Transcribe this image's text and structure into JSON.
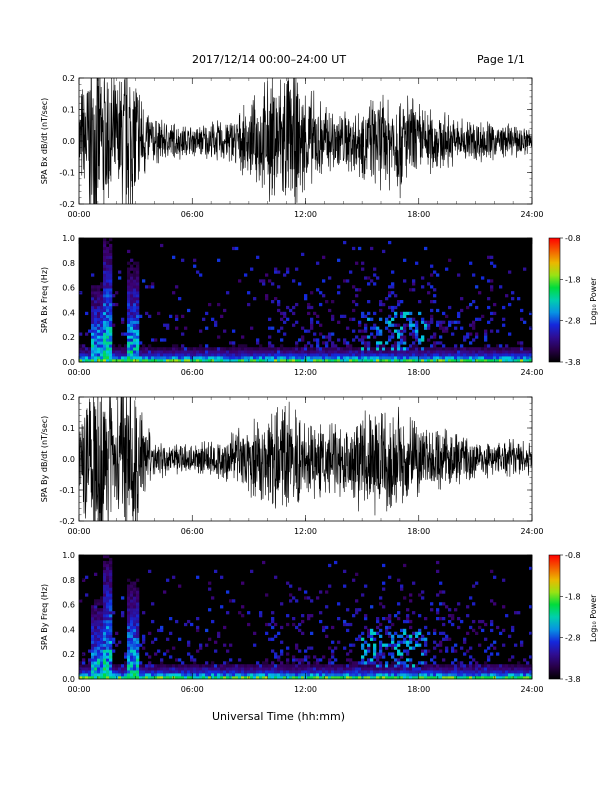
{
  "header": {
    "title": "2017/12/14  00:00–24:00 UT",
    "page": "Page 1/1"
  },
  "xlabel": "Universal Time (hh:mm)",
  "colorbar": {
    "label": "Log₁₀ Power",
    "ticks": [
      "-0.8",
      "-1.8",
      "-2.8",
      "-3.8"
    ],
    "range": [
      -3.8,
      -0.8
    ]
  },
  "chart_data": [
    {
      "type": "line",
      "ylabel": "SPA Bx dB/dt (nT/sec)",
      "xlim": [
        0,
        24
      ],
      "ylim": [
        -0.2,
        0.2
      ],
      "xticks": [
        "00:00",
        "06:00",
        "12:00",
        "18:00",
        "24:00"
      ],
      "yticks": [
        "0.2",
        "0.1",
        "0.0",
        "-0.1",
        "-0.2"
      ],
      "envelope": {
        "t_hours": [
          0,
          0.5,
          1,
          1.5,
          2,
          2.5,
          3,
          3.5,
          4,
          5,
          6,
          7,
          8,
          9,
          10,
          11,
          12,
          13,
          14,
          15,
          16,
          17,
          18,
          19,
          20,
          21,
          22,
          23,
          24
        ],
        "amplitude": [
          0.12,
          0.2,
          0.25,
          0.2,
          0.15,
          0.25,
          0.2,
          0.1,
          0.06,
          0.05,
          0.04,
          0.05,
          0.06,
          0.09,
          0.16,
          0.2,
          0.14,
          0.1,
          0.08,
          0.1,
          0.12,
          0.14,
          0.1,
          0.08,
          0.06,
          0.06,
          0.05,
          0.04,
          0.04
        ]
      }
    },
    {
      "type": "heatmap",
      "ylabel": "SPA Bx Freq (Hz)",
      "xlim": [
        0,
        24
      ],
      "ylim": [
        0,
        1
      ],
      "xticks": [
        "00:00",
        "06:00",
        "12:00",
        "18:00",
        "24:00"
      ],
      "yticks": [
        "1.0",
        "0.8",
        "0.6",
        "0.4",
        "0.2",
        "0.0"
      ],
      "zlim": [
        -3.8,
        -0.8
      ]
    },
    {
      "type": "line",
      "ylabel": "SPA By dB/dt (nT/sec)",
      "xlim": [
        0,
        24
      ],
      "ylim": [
        -0.2,
        0.2
      ],
      "xticks": [
        "00:00",
        "06:00",
        "12:00",
        "18:00",
        "24:00"
      ],
      "yticks": [
        "0.2",
        "0.1",
        "0.0",
        "-0.1",
        "-0.2"
      ],
      "envelope": {
        "t_hours": [
          0,
          0.5,
          1,
          1.5,
          2,
          2.5,
          3,
          3.5,
          4,
          5,
          6,
          7,
          8,
          9,
          10,
          11,
          12,
          13,
          14,
          15,
          16,
          17,
          18,
          19,
          20,
          21,
          22,
          23,
          24
        ],
        "amplitude": [
          0.1,
          0.18,
          0.25,
          0.2,
          0.16,
          0.25,
          0.2,
          0.1,
          0.05,
          0.04,
          0.04,
          0.05,
          0.07,
          0.1,
          0.12,
          0.14,
          0.12,
          0.09,
          0.1,
          0.13,
          0.14,
          0.13,
          0.1,
          0.08,
          0.07,
          0.06,
          0.05,
          0.05,
          0.04
        ]
      }
    },
    {
      "type": "heatmap",
      "ylabel": "SPA By Freq (Hz)",
      "xlim": [
        0,
        24
      ],
      "ylim": [
        0,
        1
      ],
      "xticks": [
        "00:00",
        "06:00",
        "12:00",
        "18:00",
        "24:00"
      ],
      "yticks": [
        "1.0",
        "0.8",
        "0.6",
        "0.4",
        "0.2",
        "0.0"
      ],
      "zlim": [
        -3.8,
        -0.8
      ]
    }
  ]
}
